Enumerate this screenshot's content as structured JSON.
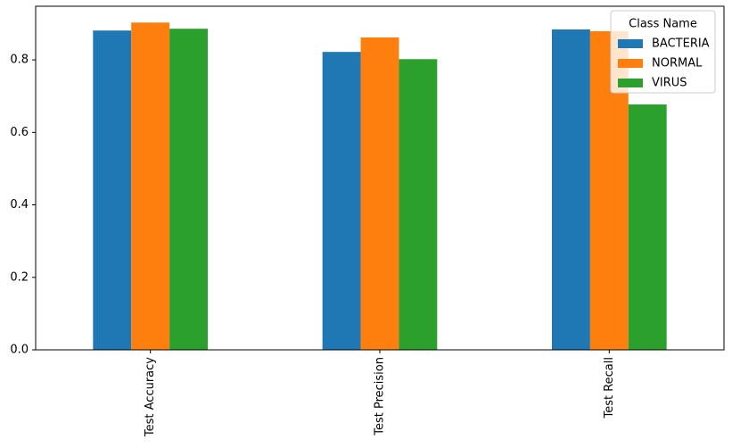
{
  "chart_data": {
    "type": "bar",
    "categories": [
      "Test Accuracy",
      "Test Precision",
      "Test Recall"
    ],
    "series": [
      {
        "name": "BACTERIA",
        "color": "#1f77b4",
        "values": [
          0.881,
          0.822,
          0.884
        ]
      },
      {
        "name": "NORMAL",
        "color": "#ff7f0e",
        "values": [
          0.903,
          0.862,
          0.879
        ]
      },
      {
        "name": "VIRUS",
        "color": "#2ca02c",
        "values": [
          0.886,
          0.802,
          0.677
        ]
      }
    ],
    "legend_title": "Class Name",
    "legend_position": "upper-right",
    "ylim": [
      0,
      0.948
    ],
    "yticks": [
      {
        "value": 0,
        "label": "0.0"
      },
      0.2,
      0.4,
      0.6,
      0.8
    ],
    "grid": false
  }
}
